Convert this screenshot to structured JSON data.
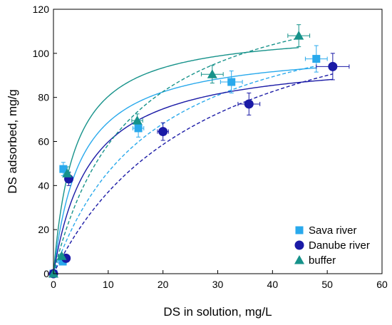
{
  "chart_data": {
    "type": "scatter",
    "title": "",
    "xlabel": "DS in solution, mg/L",
    "ylabel": "DS adsorbed, mg/g",
    "xlim": [
      0,
      60
    ],
    "ylim": [
      0,
      120
    ],
    "x_ticks": [
      0,
      10,
      20,
      30,
      40,
      50,
      60
    ],
    "y_ticks": [
      0,
      20,
      40,
      60,
      80,
      100,
      120
    ],
    "grid": false,
    "legend_position": "bottom-right",
    "series": [
      {
        "name": "Sava river",
        "marker": "square",
        "color": "#29a9ec",
        "points": [
          {
            "x": 0,
            "y": 0,
            "xerr": 0,
            "yerr": 0
          },
          {
            "x": 1.7,
            "y": 5.5,
            "xerr": 0.5,
            "yerr": 1
          },
          {
            "x": 1.8,
            "y": 47.5,
            "xerr": 0.5,
            "yerr": 3
          },
          {
            "x": 15.5,
            "y": 66,
            "xerr": 1,
            "yerr": 4
          },
          {
            "x": 32.5,
            "y": 87,
            "xerr": 2,
            "yerr": 5
          },
          {
            "x": 48,
            "y": 97.5,
            "xerr": 2,
            "yerr": 6
          }
        ],
        "fits": [
          {
            "style": "solid",
            "model": "langmuir",
            "qmax": 103.1,
            "K": 0.2
          },
          {
            "style": "dashed",
            "model": "langmuir",
            "qmax": 130,
            "K": 0.055
          }
        ]
      },
      {
        "name": "Danube river",
        "marker": "circle",
        "color": "#1a1aa6",
        "points": [
          {
            "x": 0,
            "y": 0,
            "xerr": 0,
            "yerr": 0
          },
          {
            "x": 2.3,
            "y": 7,
            "xerr": 0.5,
            "yerr": 1
          },
          {
            "x": 2.8,
            "y": 43,
            "xerr": 0.5,
            "yerr": 3
          },
          {
            "x": 20,
            "y": 64.5,
            "xerr": 1,
            "yerr": 4
          },
          {
            "x": 35.7,
            "y": 77,
            "xerr": 2,
            "yerr": 5
          },
          {
            "x": 51,
            "y": 94,
            "xerr": 3,
            "yerr": 6
          }
        ],
        "fits": [
          {
            "style": "solid",
            "model": "langmuir",
            "qmax": 99.7,
            "K": 0.15
          },
          {
            "style": "dashed",
            "model": "langmuir",
            "qmax": 140,
            "K": 0.036
          }
        ]
      },
      {
        "name": "buffer",
        "marker": "triangle",
        "color": "#16928a",
        "points": [
          {
            "x": 0,
            "y": 0,
            "xerr": 0,
            "yerr": 0
          },
          {
            "x": 1.5,
            "y": 8,
            "xerr": 0.5,
            "yerr": 1
          },
          {
            "x": 2.5,
            "y": 45.5,
            "xerr": 0.5,
            "yerr": 3
          },
          {
            "x": 15.3,
            "y": 69.5,
            "xerr": 1,
            "yerr": 3
          },
          {
            "x": 29,
            "y": 90.5,
            "xerr": 2,
            "yerr": 4
          },
          {
            "x": 44.8,
            "y": 108,
            "xerr": 2,
            "yerr": 5
          }
        ],
        "fits": [
          {
            "style": "solid",
            "model": "langmuir",
            "qmax": 111.4,
            "K": 0.26
          },
          {
            "style": "dashed",
            "model": "langmuir",
            "qmax": 140,
            "K": 0.072
          }
        ]
      }
    ]
  }
}
